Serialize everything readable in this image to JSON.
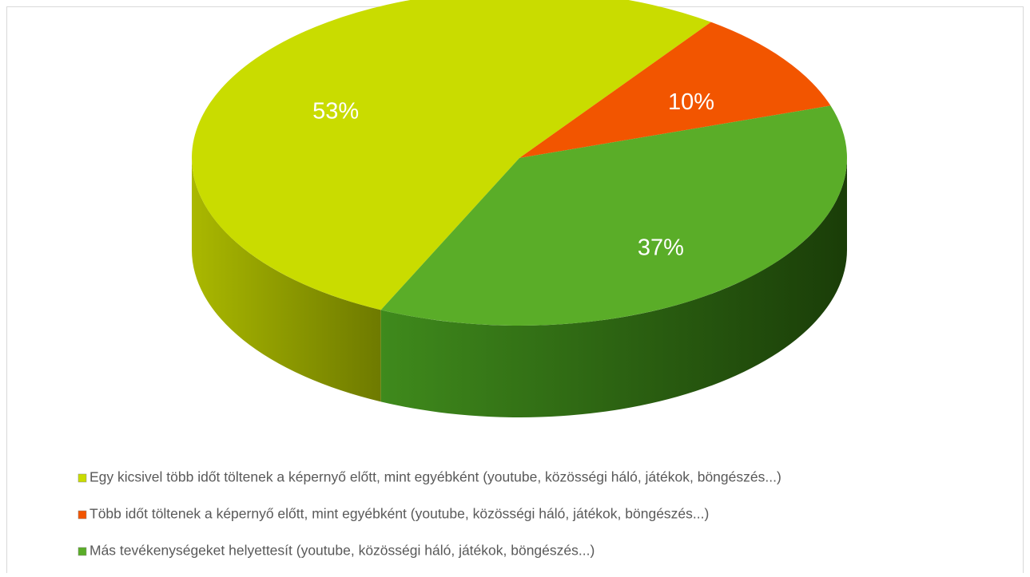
{
  "chart_data": {
    "type": "pie",
    "categories": [
      "Egy kicsivel több időt töltenek a képernyő előtt, mint egyébként (youtube, közösségi háló, játékok, böngészés...)",
      "Több időt töltenek a képernyő előtt, mint egyébként (youtube, közösségi háló, játékok, böngészés...)",
      "Más tevékenységeket helyettesít (youtube, közösségi háló, játékok, böngészés...)"
    ],
    "values": [
      53,
      10,
      37
    ],
    "value_labels": [
      "53%",
      "10%",
      "37%"
    ],
    "colors": [
      "#c9dc00",
      "#f25500",
      "#5aad28"
    ],
    "legend": "bottom"
  }
}
